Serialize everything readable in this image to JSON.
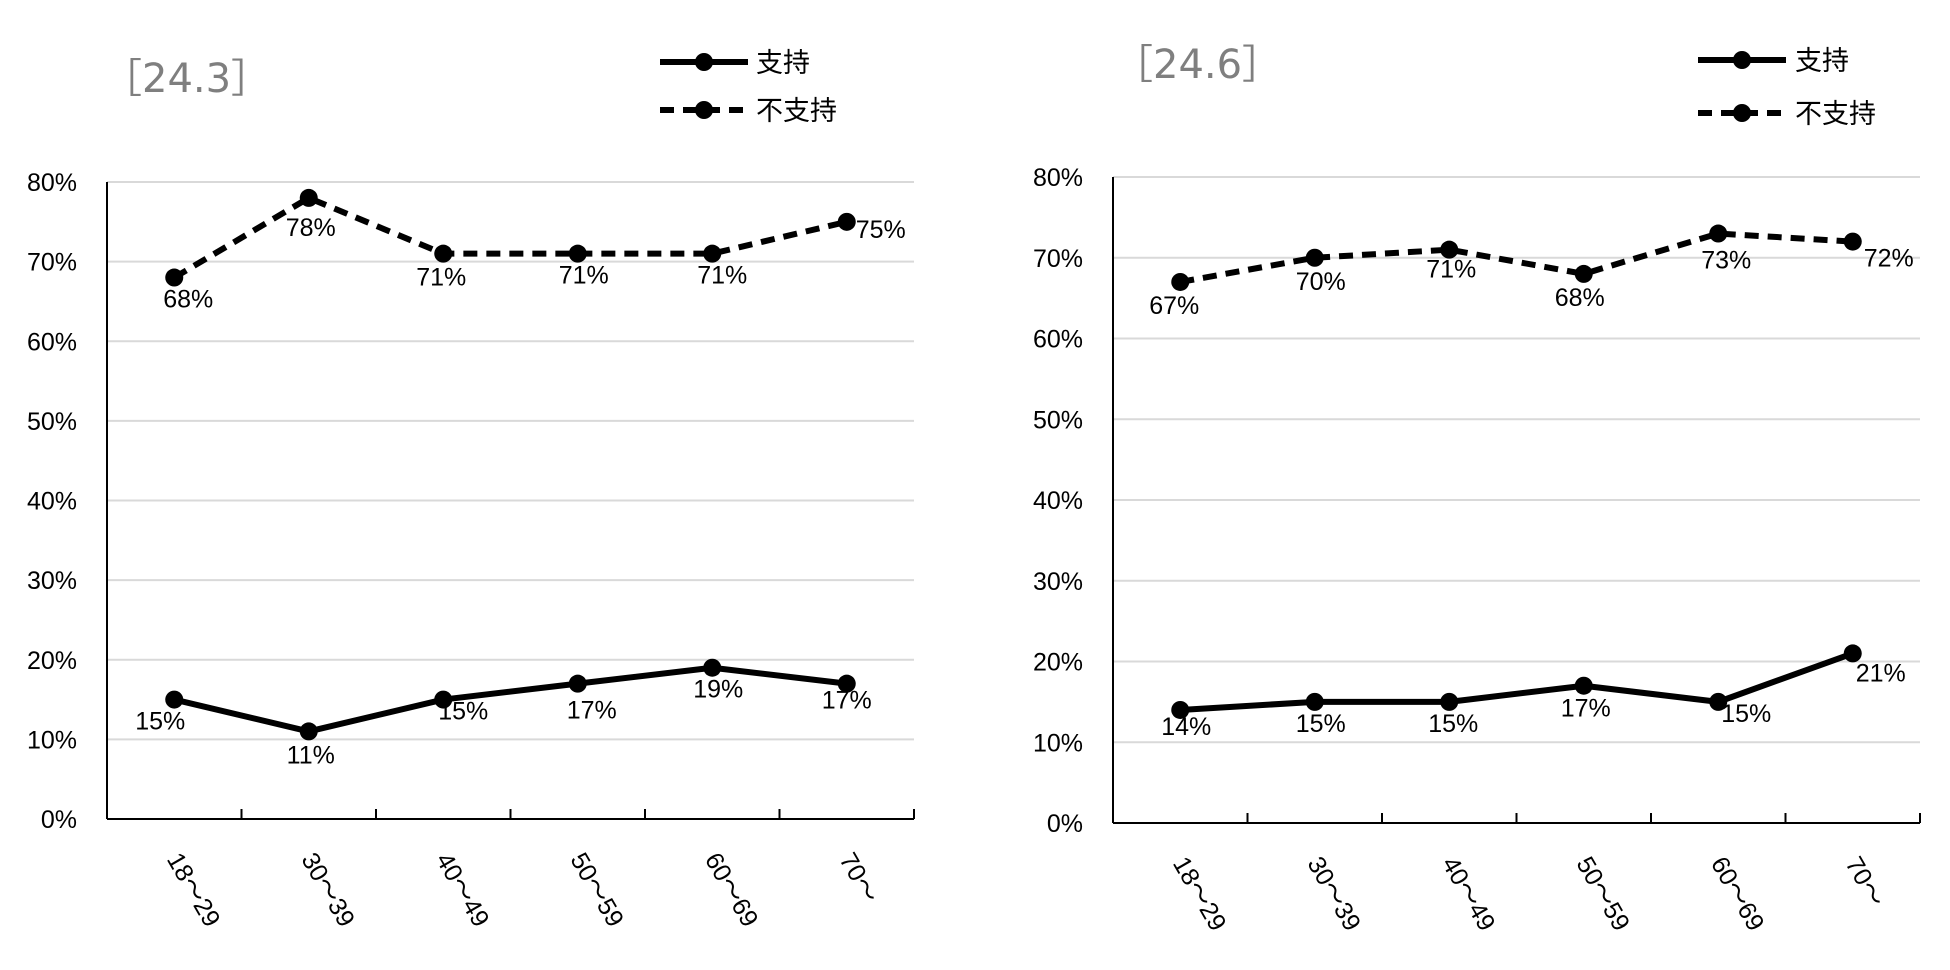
{
  "chart_data": [
    {
      "type": "line",
      "title": "［24.3］",
      "categories": [
        "18～29",
        "30～39",
        "40～49",
        "50～59",
        "60～69",
        "70～"
      ],
      "ylim": [
        0,
        80
      ],
      "yticks": [
        "0%",
        "10%",
        "20%",
        "30%",
        "40%",
        "50%",
        "60%",
        "70%",
        "80%"
      ],
      "grid": true,
      "legend_position": "top-right",
      "series": [
        {
          "name": "支持",
          "style": "solid",
          "values": [
            15,
            11,
            15,
            17,
            19,
            17
          ],
          "labels": [
            "15%",
            "11%",
            "15%",
            "17%",
            "19%",
            "17%"
          ]
        },
        {
          "name": "不支持",
          "style": "dashed",
          "values": [
            68,
            78,
            71,
            71,
            71,
            75
          ],
          "labels": [
            "68%",
            "78%",
            "71%",
            "71%",
            "71%",
            "75%"
          ]
        }
      ]
    },
    {
      "type": "line",
      "title": "［24.6］",
      "categories": [
        "18～29",
        "30～39",
        "40～49",
        "50～59",
        "60～69",
        "70～"
      ],
      "ylim": [
        0,
        80
      ],
      "yticks": [
        "0%",
        "10%",
        "20%",
        "30%",
        "40%",
        "50%",
        "60%",
        "70%",
        "80%"
      ],
      "grid": true,
      "legend_position": "top-right",
      "series": [
        {
          "name": "支持",
          "style": "solid",
          "values": [
            14,
            15,
            15,
            17,
            15,
            21
          ],
          "labels": [
            "14%",
            "15%",
            "15%",
            "17%",
            "15%",
            "21%"
          ]
        },
        {
          "name": "不支持",
          "style": "dashed",
          "values": [
            67,
            70,
            71,
            68,
            73,
            72
          ],
          "labels": [
            "67%",
            "70%",
            "71%",
            "68%",
            "73%",
            "72%"
          ]
        }
      ]
    }
  ],
  "colors": {
    "line": "#000000",
    "grid": "#d9d9d9",
    "title": "#7f7f7f"
  }
}
